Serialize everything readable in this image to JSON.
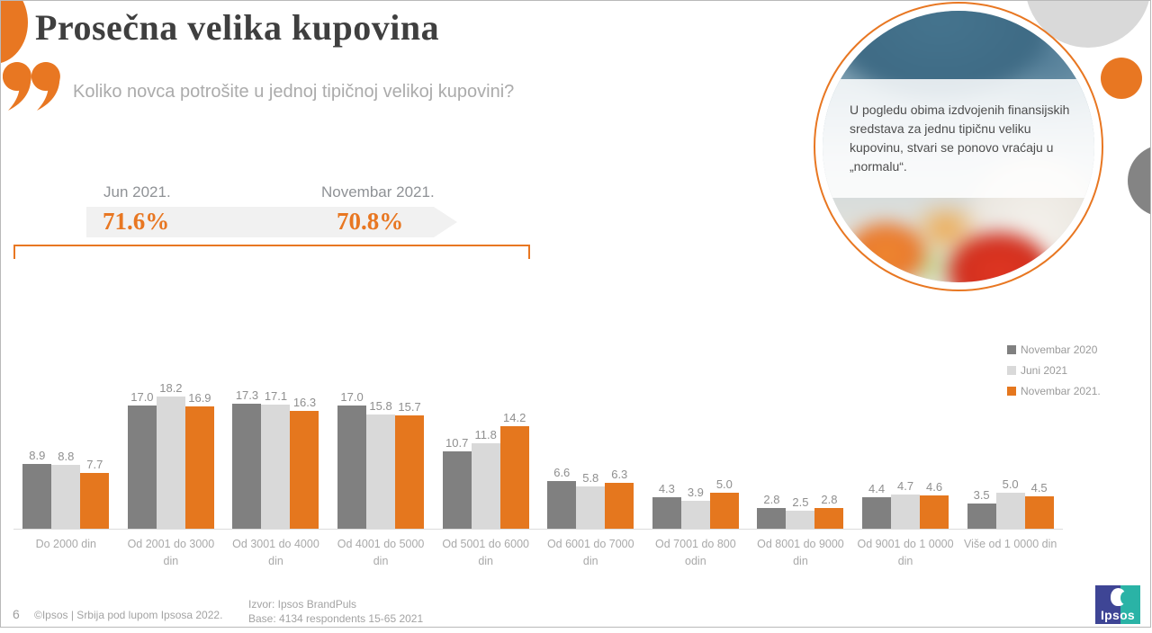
{
  "header": {
    "title": "Prosečna velika kupovina",
    "subtitle": "Koliko novca potrošite u jednoj tipičnoj velikoj kupovini?"
  },
  "trend_banner": {
    "items": [
      {
        "label": "Jun 2021.",
        "value": "71.6%"
      },
      {
        "label": "Novembar 2021.",
        "value": "70.8%"
      }
    ]
  },
  "callout": {
    "text": "U pogledu obima izdvojenih finansijskih sredstava za jednu tipičnu veliku kupovinu, stvari se ponovo vraćaju u „normalu“."
  },
  "chart_data": {
    "type": "bar",
    "categories": [
      "Do 2000 din",
      "Od 2001 do 3000 din",
      "Od 3001 do 4000 din",
      "Od 4001 do 5000 din",
      "Od 5001 do 6000 din",
      "Od 6001 do 7000 din",
      "Od 7001 do 800 odin",
      "Od 8001 do 9000 din",
      "Od 9001 do 1 0000 din",
      "Više od 1 0000 din"
    ],
    "series": [
      {
        "name": "Novembar 2020",
        "color": "#808080",
        "values": [
          8.9,
          17.0,
          17.3,
          17.0,
          10.7,
          6.6,
          4.3,
          2.8,
          4.4,
          3.5
        ]
      },
      {
        "name": "Juni 2021",
        "color": "#D9D9D9",
        "values": [
          8.8,
          18.2,
          17.1,
          15.8,
          11.8,
          5.8,
          3.9,
          2.5,
          4.7,
          5.0
        ]
      },
      {
        "name": "Novembar 2021.",
        "color": "#E5771E",
        "values": [
          7.7,
          16.9,
          16.3,
          15.7,
          14.2,
          6.3,
          5.0,
          2.8,
          4.6,
          4.5
        ]
      }
    ],
    "title": "",
    "xlabel": "",
    "ylabel": "",
    "ylim": [
      0,
      20
    ],
    "grid": false,
    "legend_position": "right",
    "value_labels": true
  },
  "footer": {
    "page_number": "6",
    "copyright": "©Ipsos | Srbija pod lupom Ipsosa 2022.",
    "source_line1": "Izvor: Ipsos BrandPuls",
    "source_line2": "Base: 4134 respondents 15-65 2021"
  },
  "logo": {
    "text": "Ipsos"
  },
  "colors": {
    "accent_orange": "#E87722",
    "bar_dark_gray": "#808080",
    "bar_light_gray": "#D9D9D9",
    "bar_orange": "#E5771E",
    "decor_light_gray": "#D9D9D9",
    "decor_dark_gray": "#848484"
  }
}
